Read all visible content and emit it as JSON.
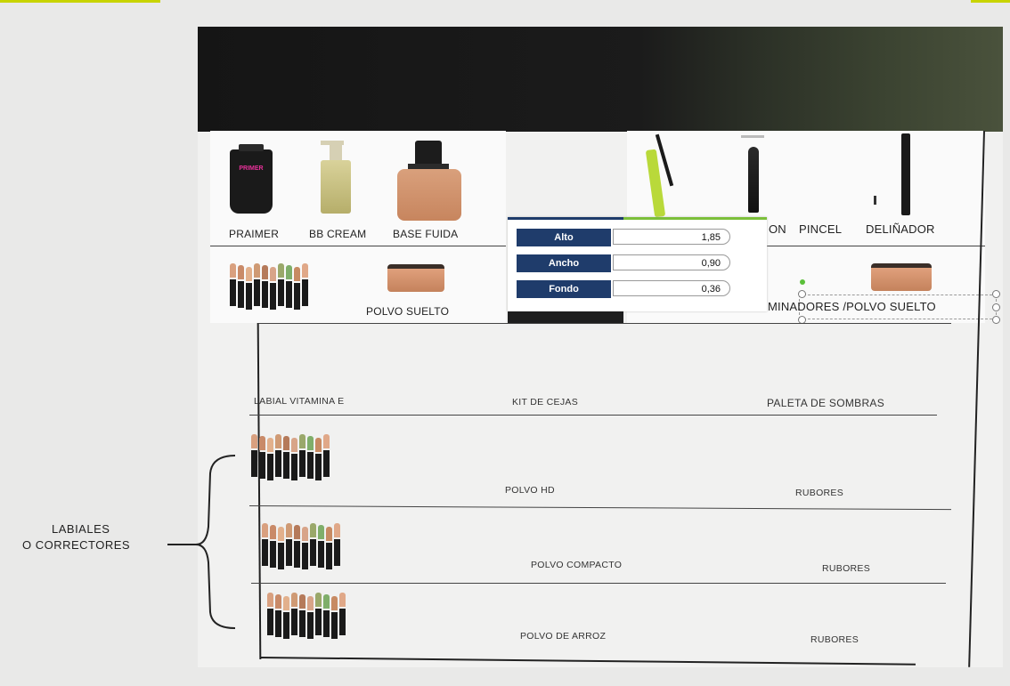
{
  "top_panel_left": {
    "products": [
      "PRAIMER",
      "BB CREAM",
      "BASE FUIDA"
    ],
    "row2_label": "POLVO SUELTO",
    "primer_brand": "PRIMER"
  },
  "top_panel_right": {
    "labels_partial": "ON",
    "pincel": "PINCEL",
    "delineador": "DELIÑADOR",
    "row2_label": "MINADORES /POLVO SUELTO"
  },
  "measure_popup": {
    "rows": [
      {
        "key": "Alto",
        "value": "1,85"
      },
      {
        "key": "Ancho",
        "value": "0,90"
      },
      {
        "key": "Fondo",
        "value": "0,36"
      }
    ],
    "accent_colors": [
      "#1f3c6b",
      "#7bbf3a"
    ]
  },
  "shelves": {
    "row3": [
      "LABIAL VITAMINA E",
      "KIT DE CEJAS",
      "PALETA DE SOMBRAS"
    ],
    "row4": [
      "POLVO HD",
      "RUBORES"
    ],
    "row5": [
      "POLVO COMPACTO",
      "RUBORES"
    ],
    "row6": [
      "POLVO DE ARROZ",
      "RUBORES"
    ]
  },
  "side_annotation": {
    "line1": "LABIALES",
    "line2": "O CORRECTORES"
  },
  "colors": {
    "popup_key_bg": "#1f3c6b",
    "popup_stripe_green": "#7bbf3a",
    "corner_accent": "#c8d400"
  }
}
